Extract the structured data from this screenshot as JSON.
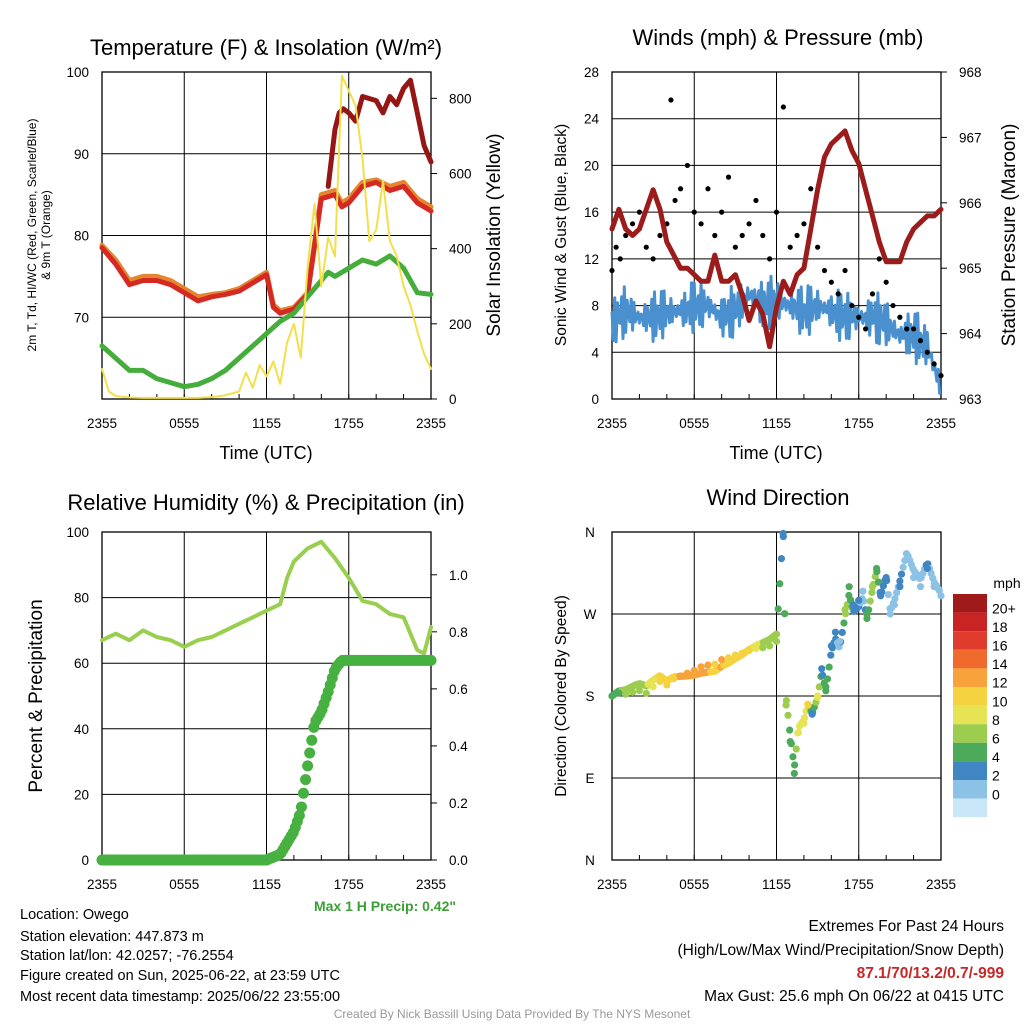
{
  "panels": {
    "temp": {
      "title": "Temperature (F) & Insolation (W/m²)",
      "xlabel": "Time (UTC)",
      "ylabel_left_1": "2m T, Td, HI/WC (Red, Green, Scarlet/Blue)",
      "ylabel_left_2": "& 9m T (Orange)",
      "ylabel_right": "Solar Insolation (Yellow)"
    },
    "wind": {
      "title": "Winds (mph) & Pressure (mb)",
      "xlabel": "Time (UTC)",
      "ylabel_left": "Sonic Wind & Gust (Blue, Black)",
      "ylabel_right": "Station Pressure (Maroon)"
    },
    "rh": {
      "title": "Relative Humidity (%) & Precipitation (in)",
      "ylabel_left": "Percent & Precipitation",
      "max_precip": "Max 1 H Precip: 0.42\""
    },
    "dir": {
      "title": "Wind Direction",
      "ylabel_left": "Direction (Colored By Speed)",
      "legend_title": "mph",
      "legend_labels": [
        "20+",
        "18",
        "16",
        "14",
        "12",
        "10",
        "8",
        "6",
        "4",
        "2",
        "0"
      ],
      "legend_colors": [
        "#a11a1a",
        "#c82424",
        "#e03c2d",
        "#f06a2e",
        "#f8a23c",
        "#f5d23f",
        "#e6e455",
        "#9ccd4f",
        "#4daa5a",
        "#3f86c2",
        "#8cc2e6",
        "#c9e7f8"
      ]
    }
  },
  "info": {
    "location": "Location: Owego",
    "elevation": "Station elevation: 447.873 m",
    "latlon": "Station lat/lon: 42.0257; -76.2554",
    "created": "Figure created on Sun, 2025-06-22, at 23:59 UTC",
    "recent": "Most recent data timestamp: 2025/06/22 23:55:00"
  },
  "extremes": {
    "title": "Extremes For Past 24 Hours",
    "subtitle": "(High/Low/Max Wind/Precipitation/Snow Depth)",
    "values": "87.1/70/13.2/0.7/-999",
    "gust": "Max Gust: 25.6 mph On 06/22 at 0415 UTC"
  },
  "credit": "Created By Nick Bassill Using Data Provided By The NYS Mesonet",
  "chart_data": [
    {
      "type": "line",
      "id": "temperature",
      "xlabel": "Time (UTC)",
      "x_ticks": [
        "2355",
        "0555",
        "1155",
        "1755",
        "2355"
      ],
      "x_range_hours": [
        0,
        24
      ],
      "y_left_ticks": [
        70,
        80,
        90,
        100
      ],
      "ylim_left": [
        60,
        100
      ],
      "y_right_ticks": [
        0,
        200,
        400,
        600,
        800
      ],
      "ylim_right": [
        0,
        870
      ],
      "series": [
        {
          "color": "#e5862f",
          "axis": "left",
          "hours": [
            0,
            1,
            2,
            3,
            4,
            5,
            6,
            7,
            8,
            9,
            10,
            11,
            12,
            12.5,
            13,
            14,
            15,
            16,
            17,
            17.5,
            18,
            19,
            20,
            21,
            22,
            23,
            24
          ],
          "values": [
            78.8,
            77,
            74.5,
            75,
            75,
            74.5,
            73.5,
            72.5,
            72.8,
            73,
            73.5,
            74.5,
            75.5,
            71.5,
            70.8,
            71.2,
            73,
            85,
            85.5,
            84,
            84.5,
            86.5,
            86.8,
            86,
            86.5,
            84.5,
            83.5
          ]
        },
        {
          "color": "#d42a23",
          "axis": "left",
          "hours": [
            0,
            1,
            2,
            3,
            4,
            5,
            6,
            7,
            8,
            9,
            10,
            11,
            12,
            12.5,
            13,
            14,
            15,
            16,
            17,
            17.5,
            18,
            19,
            20,
            21,
            22,
            23,
            24
          ],
          "values": [
            78.5,
            76.5,
            74,
            74.5,
            74.5,
            74,
            73,
            72,
            72.5,
            72.8,
            73.2,
            74.2,
            75.2,
            71.2,
            70.5,
            71,
            72.8,
            84.5,
            85,
            83.5,
            84,
            86,
            86.5,
            85.5,
            86,
            84,
            83
          ]
        },
        {
          "color": "#961616",
          "axis": "left",
          "hours": [
            16.5,
            17,
            17.3,
            17.6,
            18,
            18.5,
            19,
            20,
            20.5,
            21,
            21.5,
            22,
            22.5,
            23,
            23.5,
            24
          ],
          "values": [
            86,
            93,
            95,
            95.5,
            95,
            94,
            97,
            96.5,
            95,
            97,
            96,
            98,
            99,
            95,
            91,
            89
          ]
        },
        {
          "color": "#44ad3b",
          "axis": "left",
          "hours": [
            0,
            1,
            2,
            3,
            4,
            5,
            6,
            7,
            8,
            9,
            10,
            11,
            12,
            13,
            14,
            15,
            16,
            16.5,
            17,
            18,
            19,
            20,
            21,
            22,
            23,
            24
          ],
          "values": [
            66.5,
            65,
            63.5,
            63.5,
            62.5,
            62,
            61.5,
            61.8,
            62.5,
            63.5,
            65,
            66.5,
            68,
            69.5,
            70.5,
            72.5,
            74.5,
            75.5,
            75,
            76,
            77,
            76.5,
            77.5,
            76,
            73,
            72.8
          ]
        },
        {
          "color": "#f2e04a",
          "axis": "right",
          "hours": [
            0,
            0.5,
            1,
            2,
            3,
            4,
            5,
            6,
            7,
            8,
            9,
            10,
            10.5,
            11,
            11.5,
            12,
            12.5,
            13,
            13.5,
            14,
            14.5,
            15,
            15.5,
            16,
            16.5,
            17,
            17.5,
            18,
            18.5,
            19,
            19.5,
            20,
            20.5,
            21,
            21.5,
            22,
            22.5,
            23,
            23.5,
            24
          ],
          "values": [
            80,
            20,
            8,
            4,
            3,
            3,
            3,
            3,
            3,
            5,
            10,
            20,
            70,
            30,
            90,
            60,
            100,
            40,
            150,
            200,
            110,
            350,
            520,
            300,
            430,
            380,
            860,
            820,
            780,
            640,
            420,
            450,
            580,
            420,
            380,
            300,
            250,
            180,
            120,
            80
          ]
        }
      ]
    },
    {
      "type": "line",
      "id": "winds",
      "xlabel": "Time (UTC)",
      "x_ticks": [
        "2355",
        "0555",
        "1155",
        "1755",
        "2355"
      ],
      "x_range_hours": [
        0,
        24
      ],
      "y_left_ticks": [
        0,
        4,
        8,
        12,
        16,
        20,
        24,
        28
      ],
      "ylim_left": [
        0,
        28
      ],
      "y_right_ticks": [
        963,
        964,
        965,
        966,
        967,
        968
      ],
      "ylim_right": [
        963,
        968
      ],
      "series": [
        {
          "color": "#4a90cf",
          "axis": "left",
          "hours": [
            0,
            1,
            2,
            3,
            4,
            5,
            6,
            7,
            8,
            9,
            10,
            11,
            12,
            13,
            14,
            15,
            16,
            17,
            18,
            19,
            20,
            21,
            22,
            23,
            24
          ],
          "values": [
            6.5,
            7.5,
            7,
            7,
            7.5,
            7.5,
            8,
            8,
            7,
            7.5,
            9,
            8,
            8.5,
            8,
            7.5,
            8,
            7.5,
            7,
            7,
            7,
            6.5,
            5.5,
            5.5,
            4.5,
            1
          ]
        },
        {
          "color": "#9c1c1c",
          "axis": "right",
          "hours": [
            0,
            0.5,
            1,
            1.5,
            2,
            2.5,
            3,
            3.5,
            4,
            4.5,
            5,
            5.5,
            6,
            6.5,
            7,
            7.5,
            8,
            8.5,
            9,
            9.5,
            10,
            10.5,
            11,
            11.5,
            12,
            12.5,
            13,
            13.5,
            14,
            14.5,
            15,
            15.5,
            16,
            16.5,
            17,
            17.5,
            18,
            18.5,
            19,
            19.5,
            20,
            20.5,
            21,
            21.5,
            22,
            22.5,
            23,
            23.5,
            24
          ],
          "values": [
            965.6,
            965.9,
            965.6,
            965.5,
            965.6,
            965.9,
            966.2,
            965.9,
            965.4,
            965.2,
            965,
            965,
            964.9,
            964.8,
            964.8,
            965.2,
            964.8,
            964.8,
            964.9,
            964.6,
            964.2,
            964.5,
            964.3,
            963.8,
            964.4,
            964.8,
            964.6,
            964.9,
            965,
            965.6,
            966.2,
            966.7,
            966.9,
            967,
            967.1,
            966.8,
            966.6,
            966.2,
            965.8,
            965.4,
            965.1,
            965.1,
            965.1,
            965.4,
            965.6,
            965.7,
            965.8,
            965.8,
            965.9
          ]
        }
      ],
      "gust_points": {
        "color": "#000000",
        "hours": [
          0,
          0.3,
          0.6,
          1,
          1.5,
          2,
          2.5,
          3,
          3.5,
          4,
          4.3,
          4.6,
          5,
          5.5,
          6,
          6.5,
          7,
          7.5,
          8,
          8.5,
          9,
          9.5,
          10,
          10.5,
          11,
          11.5,
          12,
          12.5,
          13,
          13.5,
          14,
          14.5,
          15,
          15.5,
          16,
          16.5,
          17,
          17.5,
          18,
          18.5,
          19,
          19.5,
          20,
          20.5,
          21,
          21.5,
          22,
          22.5,
          23,
          23.5,
          24
        ],
        "values": [
          11,
          13,
          12,
          14,
          15,
          16,
          13,
          12,
          14,
          15,
          25.6,
          17,
          18,
          20,
          16,
          15,
          18,
          14,
          16,
          19,
          13,
          14,
          15,
          17,
          14,
          12,
          16,
          25,
          13,
          14,
          15,
          18,
          13,
          11,
          10,
          9,
          11,
          8,
          7,
          6,
          9,
          12,
          10,
          8,
          7,
          6,
          6,
          5,
          4,
          3,
          2
        ]
      }
    },
    {
      "type": "line",
      "id": "humidity_precip",
      "x_ticks": [
        "2355",
        "0555",
        "1155",
        "1755",
        "2355"
      ],
      "x_range_hours": [
        0,
        24
      ],
      "y_left_ticks": [
        0,
        20,
        40,
        60,
        80,
        100
      ],
      "ylim_left": [
        0,
        100
      ],
      "y_right_ticks": [
        "0.0",
        "0.2",
        "0.4",
        "0.6",
        "0.8",
        "1.0"
      ],
      "ylim_right": [
        0,
        1.15
      ],
      "series": [
        {
          "color": "#98cf4e",
          "axis": "left",
          "hours": [
            0,
            1,
            2,
            3,
            4,
            5,
            6,
            7,
            8,
            9,
            10,
            11,
            12,
            13,
            13.5,
            14,
            15,
            15.5,
            16,
            17,
            18,
            19,
            20,
            21,
            22,
            23,
            23.5,
            24
          ],
          "values": [
            67,
            69,
            67,
            70,
            68,
            67,
            65,
            67,
            68,
            70,
            72,
            74,
            76,
            78,
            86,
            91,
            95,
            96,
            97,
            92,
            86,
            79,
            78,
            75,
            74,
            64,
            63,
            71
          ]
        },
        {
          "color": "#46b040",
          "axis": "right",
          "hours": [
            0,
            12,
            13,
            14,
            14.5,
            15,
            15.5,
            16,
            16.5,
            17,
            17.5,
            24
          ],
          "values": [
            0,
            0,
            0.02,
            0.1,
            0.17,
            0.33,
            0.48,
            0.52,
            0.59,
            0.67,
            0.7,
            0.7
          ]
        }
      ]
    },
    {
      "type": "scatter",
      "id": "wind_direction",
      "x_ticks": [
        "2355",
        "0555",
        "1155",
        "1755",
        "2355"
      ],
      "x_range_hours": [
        0,
        24
      ],
      "y_ticks": [
        "N",
        "E",
        "S",
        "W",
        "N"
      ],
      "ylim_degrees": [
        0,
        360
      ],
      "points": {
        "hours": [
          0,
          0.5,
          1,
          1.5,
          2,
          2.5,
          3,
          3.5,
          4,
          4.5,
          5,
          5.5,
          6,
          6.5,
          7,
          7.5,
          8,
          8.5,
          9,
          9.5,
          10,
          10.5,
          11,
          11.5,
          12,
          12.5,
          12.7,
          13,
          13.3,
          13.6,
          14,
          14.3,
          14.6,
          15,
          15.3,
          15.6,
          16,
          16.3,
          16.6,
          17,
          17.3,
          17.6,
          18,
          18.3,
          18.6,
          19,
          19.3,
          19.6,
          20,
          20.3,
          20.6,
          21,
          21.5,
          22,
          22.5,
          23,
          23.5,
          24
        ],
        "degrees": [
          180,
          183,
          182,
          184,
          186,
          183,
          190,
          196,
          192,
          199,
          202,
          205,
          208,
          212,
          214,
          215,
          220,
          222,
          225,
          227,
          230,
          232,
          233,
          235,
          240,
          355,
          170,
          130,
          95,
          140,
          150,
          170,
          160,
          180,
          210,
          190,
          235,
          250,
          240,
          275,
          300,
          280,
          285,
          295,
          270,
          300,
          320,
          290,
          310,
          270,
          280,
          300,
          330,
          310,
          300,
          320,
          300,
          290
        ],
        "speeds": [
          6,
          6,
          7,
          7,
          7,
          8,
          9,
          10,
          10,
          11,
          12,
          12,
          13,
          12,
          12,
          11,
          12,
          10,
          11,
          10,
          11,
          9,
          8,
          8,
          7,
          3,
          8,
          6,
          5,
          9,
          9,
          10,
          3,
          9,
          4,
          6,
          4,
          3,
          2,
          7,
          6,
          4,
          3,
          2,
          5,
          8,
          6,
          4,
          3,
          2,
          1,
          3,
          2,
          1,
          2,
          3,
          2,
          2
        ]
      }
    }
  ]
}
